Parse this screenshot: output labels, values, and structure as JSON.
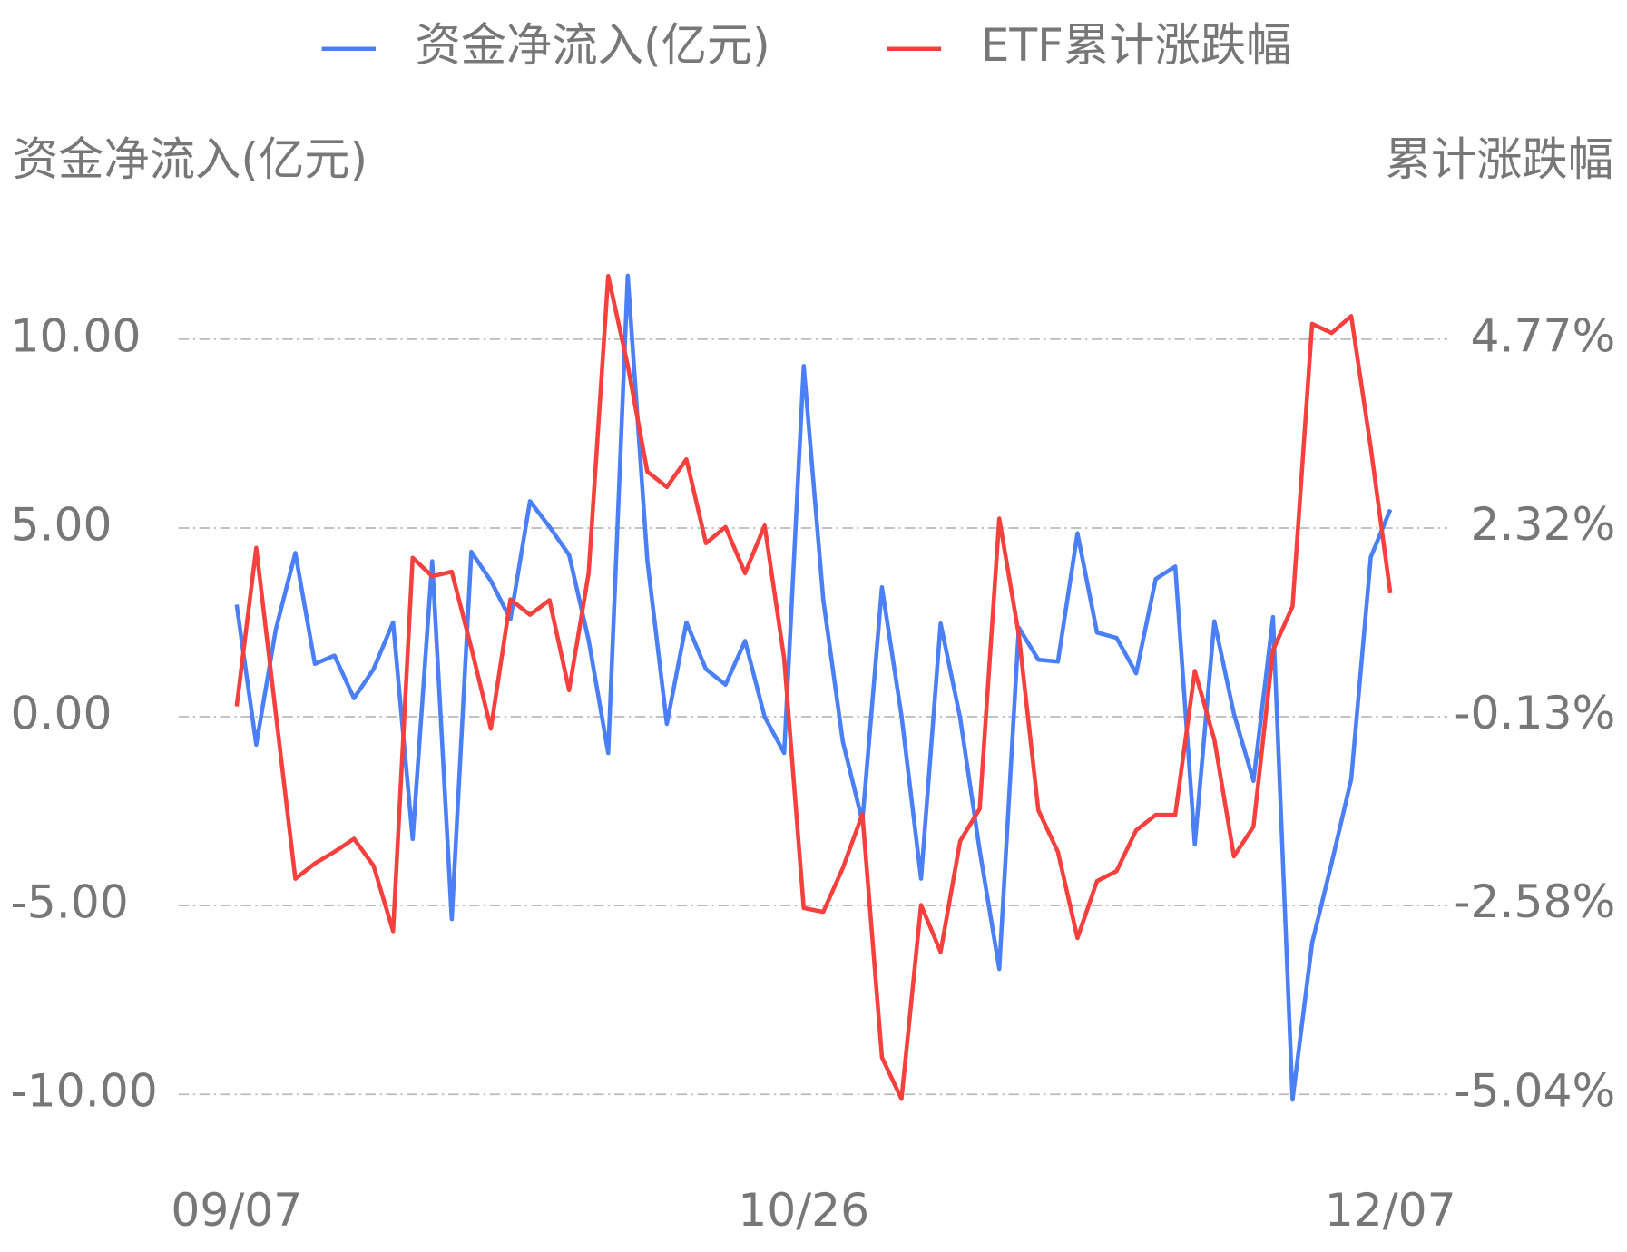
{
  "chart_data": {
    "type": "line",
    "y_label": "资金净流入(亿元)",
    "y2_label": "累计涨跌幅",
    "categories": [
      "09/07",
      null,
      null,
      null,
      null,
      null,
      null,
      null,
      null,
      null,
      null,
      null,
      null,
      null,
      null,
      null,
      null,
      null,
      null,
      null,
      null,
      null,
      null,
      null,
      null,
      null,
      null,
      null,
      null,
      "10/26",
      null,
      null,
      null,
      null,
      null,
      null,
      null,
      null,
      null,
      null,
      null,
      null,
      null,
      null,
      null,
      null,
      null,
      null,
      null,
      null,
      null,
      null,
      null,
      null,
      null,
      null,
      null,
      null,
      null,
      "12/07"
    ],
    "series": [
      {
        "name": "资金净流入(亿元)",
        "color": "#4a7ff5",
        "axis": "y",
        "values": [
          2.97,
          -0.74,
          2.31,
          4.34,
          1.4,
          1.62,
          0.49,
          1.26,
          2.5,
          -3.24,
          4.12,
          -5.36,
          4.37,
          3.6,
          2.58,
          5.71,
          5.03,
          4.29,
          2.03,
          -0.96,
          11.68,
          4.15,
          -0.19,
          2.5,
          1.26,
          0.85,
          2.01,
          0,
          -0.96,
          9.29,
          3.1,
          -0.66,
          -2.77,
          3.43,
          0.03,
          -4.29,
          2.47,
          -0.03,
          -3.54,
          -6.68,
          2.36,
          1.51,
          1.46,
          4.86,
          2.23,
          2.09,
          1.15,
          3.65,
          3.98,
          -3.38,
          2.53,
          0.08,
          -1.7,
          2.64,
          -10.14,
          -5.99,
          -3.87,
          -1.65,
          4.23,
          5.49
        ]
      },
      {
        "name": "ETF累计涨跌幅",
        "color": "#f5403e",
        "axis": "y2",
        "values": [
          0.0,
          2.06,
          -0.09,
          -2.24,
          -2.04,
          -1.89,
          -1.72,
          -2.07,
          -2.92,
          1.93,
          1.69,
          1.75,
          0.76,
          -0.29,
          1.39,
          1.19,
          1.38,
          0.21,
          1.73,
          5.59,
          4.43,
          3.05,
          2.85,
          3.21,
          2.12,
          2.33,
          1.73,
          2.35,
          0.62,
          -2.62,
          -2.67,
          -2.1,
          -1.4,
          -4.56,
          -5.1,
          -2.58,
          -3.19,
          -1.75,
          -1.33,
          2.44,
          0.93,
          -1.35,
          -1.89,
          -3.01,
          -2.27,
          -2.14,
          -1.61,
          -1.41,
          -1.41,
          0.46,
          -0.43,
          -1.95,
          -1.56,
          0.73,
          1.3,
          4.97,
          4.85,
          5.07,
          3.36,
          1.47
        ]
      }
    ],
    "ylim": [
      -10,
      10
    ],
    "yticks": [
      {
        "value": -10,
        "label": "-10.00"
      },
      {
        "value": -5,
        "label": "-5.00"
      },
      {
        "value": 0,
        "label": "0.00"
      },
      {
        "value": 5,
        "label": "5.00"
      },
      {
        "value": 10,
        "label": "10.00"
      }
    ],
    "y2lim": [
      -5.04,
      4.77
    ],
    "y2ticks": [
      {
        "value": -5.04,
        "label": "-5.04%"
      },
      {
        "value": -2.58,
        "label": "-2.58%"
      },
      {
        "value": -0.13,
        "label": "-0.13%"
      },
      {
        "value": 2.32,
        "label": "2.32%"
      },
      {
        "value": 4.77,
        "label": "4.77%"
      }
    ],
    "grid": true
  }
}
